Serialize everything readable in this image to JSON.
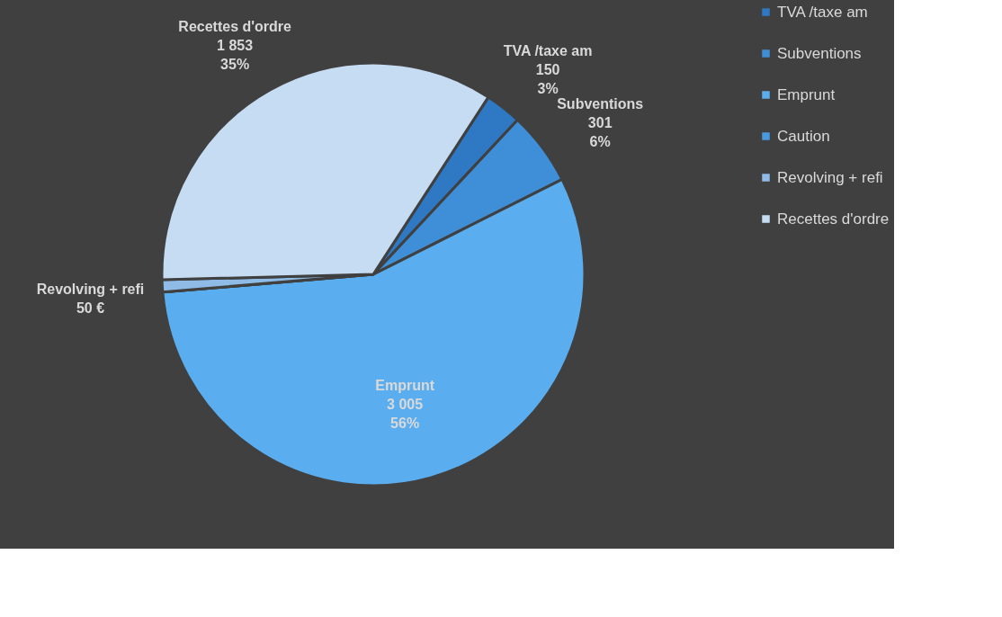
{
  "chart_data": {
    "type": "pie",
    "categories": [
      "TVA /taxe am",
      "Subventions",
      "Emprunt",
      "Caution",
      "Revolving + refi",
      "Recettes d'ordre"
    ],
    "values": [
      150,
      301,
      3005,
      0,
      50,
      1853
    ],
    "colors": [
      "#2f78c4",
      "#3f8fd8",
      "#5aaeef",
      "#4a9ae0",
      "#8fbce6",
      "#c6dcf3"
    ],
    "value_labels": [
      "150\n3%",
      "301\n6%",
      "3 005\n56%",
      null,
      "50 €",
      "1 853\n35%"
    ],
    "legend": "right"
  }
}
